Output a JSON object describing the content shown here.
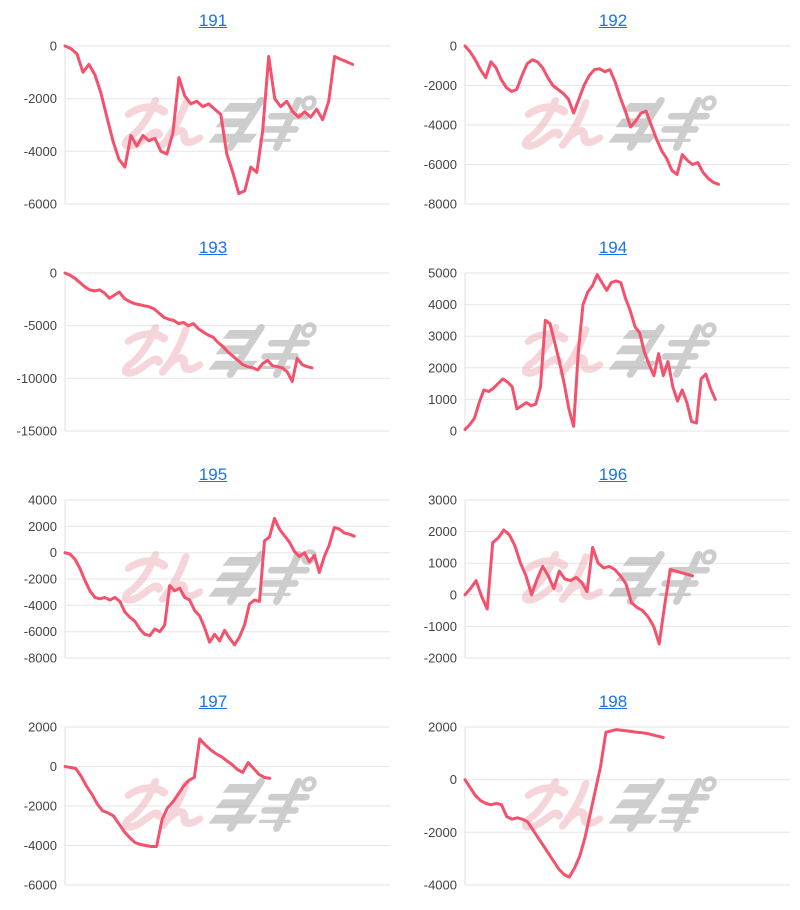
{
  "page": {
    "background": "#ffffff"
  },
  "watermark": {
    "text": "みんレポ",
    "pink": "#eeb3bc",
    "gray": "#a6a6a6",
    "opacity": 0.55
  },
  "colors": {
    "line": "#f4516c",
    "link": "#1a73e8",
    "grid": "#e6e6e6",
    "axis": "#e0e0e0",
    "tick_label": "#444444"
  },
  "chart_data": [
    {
      "type": "line",
      "title": "191",
      "xlabel": "",
      "ylabel": "",
      "ylim": [
        -6000,
        0
      ],
      "yticks": [
        0,
        -2000,
        -4000,
        -6000
      ],
      "grid": true,
      "legend": "none",
      "end_frac": 0.885,
      "values": [
        0,
        -100,
        -300,
        -1000,
        -700,
        -1100,
        -1800,
        -2700,
        -3600,
        -4300,
        -4600,
        -3400,
        -3800,
        -3400,
        -3600,
        -3500,
        -4000,
        -4100,
        -3300,
        -1200,
        -1900,
        -2200,
        -2100,
        -2300,
        -2200,
        -2400,
        -2600,
        -4100,
        -4800,
        -5600,
        -5500,
        -4600,
        -4800,
        -3200,
        -400,
        -2000,
        -2300,
        -2100,
        -2500,
        -2700,
        -2500,
        -2700,
        -2400,
        -2800,
        -2100,
        -400,
        -500,
        -600,
        -700
      ]
    },
    {
      "type": "line",
      "title": "192",
      "xlabel": "",
      "ylabel": "",
      "ylim": [
        -8000,
        0
      ],
      "yticks": [
        0,
        -2000,
        -4000,
        -6000,
        -8000
      ],
      "grid": true,
      "legend": "none",
      "end_frac": 0.78,
      "values": [
        0,
        -300,
        -700,
        -1200,
        -1600,
        -800,
        -1100,
        -1700,
        -2100,
        -2300,
        -2200,
        -1500,
        -900,
        -700,
        -800,
        -1100,
        -1600,
        -2000,
        -2200,
        -2400,
        -2700,
        -3400,
        -2700,
        -2000,
        -1500,
        -1200,
        -1150,
        -1300,
        -1200,
        -1800,
        -2600,
        -3300,
        -4100,
        -3800,
        -3400,
        -3300,
        -4000,
        -4700,
        -5300,
        -5700,
        -6300,
        -6500,
        -5500,
        -5800,
        -6000,
        -5900,
        -6400,
        -6700,
        -6900,
        -7000
      ]
    },
    {
      "type": "line",
      "title": "193",
      "xlabel": "",
      "ylabel": "",
      "ylim": [
        -15000,
        0
      ],
      "yticks": [
        0,
        -5000,
        -10000,
        -15000
      ],
      "grid": true,
      "legend": "none",
      "end_frac": 0.76,
      "values": [
        0,
        -200,
        -500,
        -900,
        -1300,
        -1600,
        -1700,
        -1600,
        -1900,
        -2400,
        -2100,
        -1800,
        -2400,
        -2700,
        -2900,
        -3000,
        -3100,
        -3200,
        -3400,
        -3800,
        -4200,
        -4400,
        -4500,
        -4800,
        -4700,
        -5000,
        -4800,
        -5300,
        -5600,
        -5900,
        -6100,
        -6600,
        -7000,
        -7500,
        -7900,
        -8300,
        -8700,
        -8900,
        -9000,
        -9200,
        -8600,
        -8300,
        -8800,
        -8900,
        -9000,
        -9400,
        -10300,
        -8100,
        -8700,
        -8900,
        -9000
      ]
    },
    {
      "type": "line",
      "title": "194",
      "xlabel": "",
      "ylabel": "",
      "ylim": [
        0,
        5000
      ],
      "yticks": [
        5000,
        4000,
        3000,
        2000,
        1000,
        0
      ],
      "grid": true,
      "legend": "none",
      "end_frac": 0.77,
      "values": [
        50,
        200,
        400,
        900,
        1300,
        1250,
        1350,
        1500,
        1650,
        1550,
        1400,
        700,
        800,
        900,
        800,
        850,
        1400,
        3500,
        3400,
        2800,
        2200,
        1500,
        700,
        150,
        2500,
        4000,
        4400,
        4600,
        4950,
        4700,
        4450,
        4700,
        4750,
        4700,
        4200,
        3800,
        3300,
        3100,
        2500,
        2100,
        1750,
        2450,
        1750,
        2200,
        1400,
        950,
        1300,
        900,
        300,
        250,
        1650,
        1800,
        1350,
        1000
      ]
    },
    {
      "type": "line",
      "title": "195",
      "xlabel": "",
      "ylabel": "",
      "ylim": [
        -8000,
        4000
      ],
      "yticks": [
        4000,
        2000,
        0,
        -2000,
        -4000,
        -6000,
        -8000
      ],
      "grid": true,
      "legend": "none",
      "end_frac": 0.89,
      "values": [
        0,
        -100,
        -500,
        -1200,
        -2100,
        -2900,
        -3400,
        -3500,
        -3400,
        -3600,
        -3400,
        -3700,
        -4500,
        -4900,
        -5200,
        -5800,
        -6200,
        -6300,
        -5800,
        -6000,
        -5500,
        -2500,
        -2900,
        -2700,
        -3400,
        -3600,
        -4400,
        -4800,
        -5700,
        -6800,
        -6200,
        -6700,
        -5900,
        -6500,
        -7000,
        -6400,
        -5500,
        -3900,
        -3600,
        -3700,
        900,
        1200,
        2600,
        1800,
        1300,
        800,
        100,
        -300,
        0,
        -700,
        -200,
        -1500,
        -300,
        600,
        1900,
        1800,
        1500,
        1400,
        1250
      ]
    },
    {
      "type": "line",
      "title": "196",
      "xlabel": "",
      "ylabel": "",
      "ylim": [
        -2000,
        3000
      ],
      "yticks": [
        3000,
        2000,
        1000,
        0,
        -1000,
        -2000
      ],
      "grid": true,
      "legend": "none",
      "end_frac": 0.7,
      "values": [
        0,
        200,
        450,
        -50,
        -450,
        1650,
        1800,
        2050,
        1900,
        1550,
        1000,
        600,
        0,
        500,
        900,
        600,
        200,
        750,
        500,
        450,
        550,
        400,
        100,
        1500,
        1000,
        850,
        900,
        800,
        600,
        350,
        -250,
        -400,
        -500,
        -700,
        -1000,
        -1550,
        -300,
        800,
        750,
        700,
        650,
        600
      ]
    },
    {
      "type": "line",
      "title": "197",
      "xlabel": "",
      "ylabel": "",
      "ylim": [
        -6000,
        2000
      ],
      "yticks": [
        2000,
        0,
        -2000,
        -4000,
        -6000
      ],
      "grid": true,
      "legend": "none",
      "end_frac": 0.63,
      "values": [
        0,
        -50,
        -100,
        -500,
        -1000,
        -1400,
        -1900,
        -2250,
        -2350,
        -2500,
        -2900,
        -3300,
        -3600,
        -3850,
        -3950,
        -4000,
        -4050,
        -4050,
        -2700,
        -2100,
        -1800,
        -1400,
        -1000,
        -700,
        -550,
        1400,
        1100,
        850,
        650,
        500,
        300,
        100,
        -150,
        -300,
        200,
        -100,
        -400,
        -550,
        -600
      ]
    },
    {
      "type": "line",
      "title": "198",
      "xlabel": "",
      "ylabel": "",
      "ylim": [
        -4000,
        2000
      ],
      "yticks": [
        2000,
        0,
        -2000,
        -4000
      ],
      "grid": true,
      "legend": "none",
      "end_frac": 0.61,
      "values": [
        0,
        -300,
        -600,
        -800,
        -900,
        -950,
        -900,
        -950,
        -1400,
        -1500,
        -1450,
        -1500,
        -1600,
        -1900,
        -2200,
        -2500,
        -2800,
        -3100,
        -3400,
        -3600,
        -3700,
        -3350,
        -2900,
        -2200,
        -1300,
        -400,
        500,
        1800,
        1850,
        1900,
        1880,
        1850,
        1830,
        1800,
        1780,
        1750,
        1700,
        1650,
        1600
      ]
    }
  ]
}
